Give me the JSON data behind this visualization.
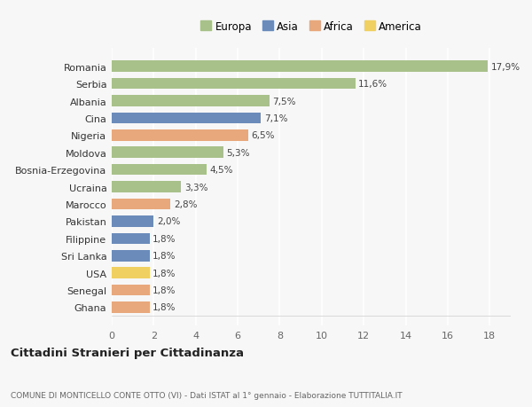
{
  "categories": [
    "Romania",
    "Serbia",
    "Albania",
    "Cina",
    "Nigeria",
    "Moldova",
    "Bosnia-Erzegovina",
    "Ucraina",
    "Marocco",
    "Pakistan",
    "Filippine",
    "Sri Lanka",
    "USA",
    "Senegal",
    "Ghana"
  ],
  "values": [
    17.9,
    11.6,
    7.5,
    7.1,
    6.5,
    5.3,
    4.5,
    3.3,
    2.8,
    2.0,
    1.8,
    1.8,
    1.8,
    1.8,
    1.8
  ],
  "labels": [
    "17,9%",
    "11,6%",
    "7,5%",
    "7,1%",
    "6,5%",
    "5,3%",
    "4,5%",
    "3,3%",
    "2,8%",
    "2,0%",
    "1,8%",
    "1,8%",
    "1,8%",
    "1,8%",
    "1,8%"
  ],
  "regions": [
    "Europa",
    "Europa",
    "Europa",
    "Asia",
    "Africa",
    "Europa",
    "Europa",
    "Europa",
    "Africa",
    "Asia",
    "Asia",
    "Asia",
    "America",
    "Africa",
    "Africa"
  ],
  "colors": {
    "Europa": "#a8c08a",
    "Asia": "#6b8cba",
    "Africa": "#e8a87c",
    "America": "#f0d060"
  },
  "title1": "Cittadini Stranieri per Cittadinanza",
  "title2": "COMUNE DI MONTICELLO CONTE OTTO (VI) - Dati ISTAT al 1° gennaio - Elaborazione TUTTITALIA.IT",
  "xlim": [
    0,
    19
  ],
  "xticks": [
    0,
    2,
    4,
    6,
    8,
    10,
    12,
    14,
    16,
    18
  ],
  "background_color": "#f7f7f7",
  "plot_bg_color": "#f7f7f7",
  "grid_color": "#ffffff",
  "bar_height": 0.65,
  "legend_entries": [
    "Europa",
    "Asia",
    "Africa",
    "America"
  ]
}
